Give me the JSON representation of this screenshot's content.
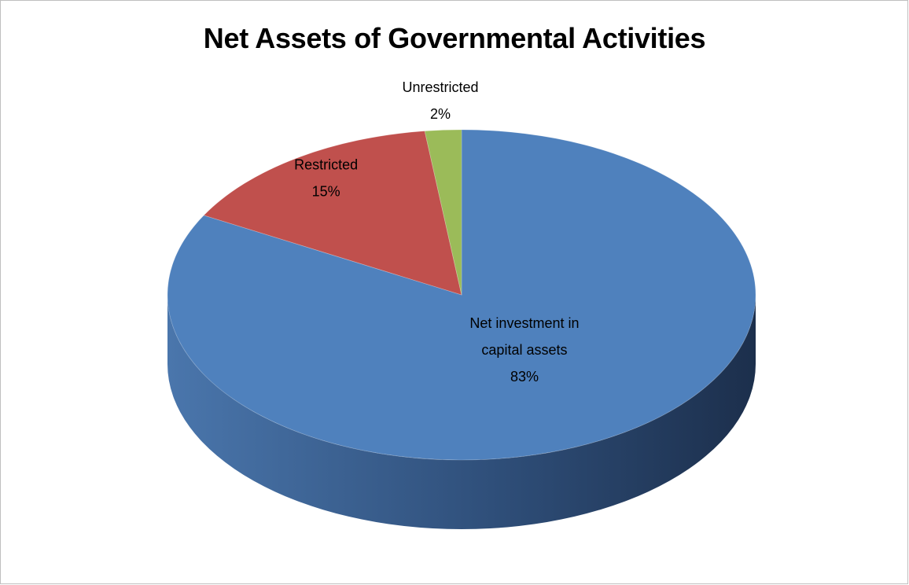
{
  "chart_data": {
    "type": "pie",
    "title": "Net Assets of Governmental Activities",
    "slices": [
      {
        "label_lines": [
          "Net investment in",
          "capital assets"
        ],
        "percent_label": "83%",
        "value": 83,
        "color": "#4f81bd"
      },
      {
        "label_lines": [
          "Restricted"
        ],
        "percent_label": "15%",
        "value": 15,
        "color": "#c0504d"
      },
      {
        "label_lines": [
          "Unrestricted"
        ],
        "percent_label": "2%",
        "value": 2,
        "color": "#9bbb59"
      }
    ],
    "legend": "none",
    "style": "3d"
  }
}
